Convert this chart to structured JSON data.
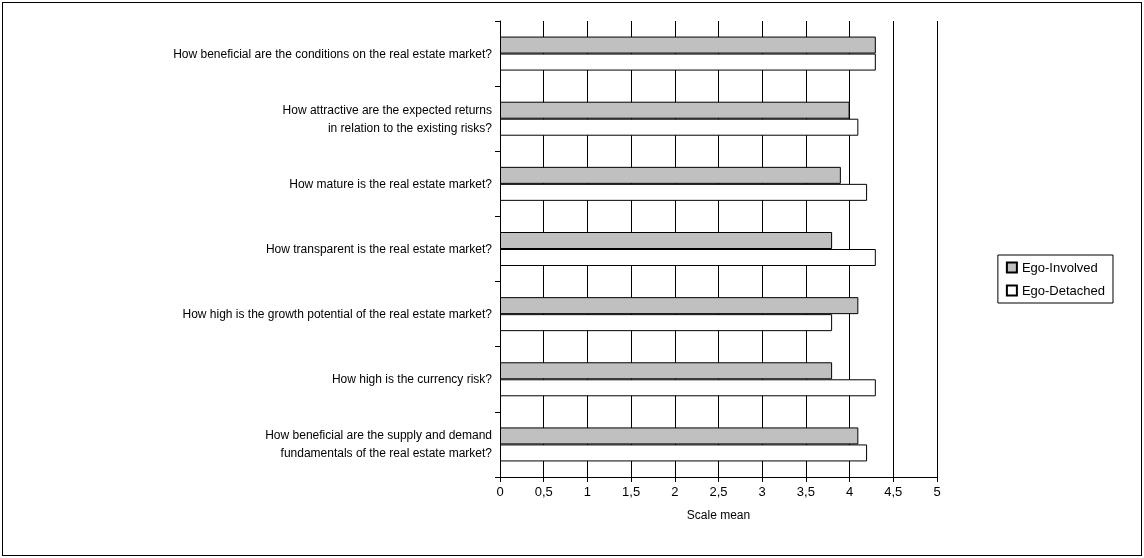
{
  "chart_data": {
    "type": "bar",
    "orientation": "horizontal",
    "xlabel": "Scale mean",
    "categories": [
      "How beneficial are the conditions on the real estate market?",
      "How attractive are the expected returns\nin relation to the existing risks?",
      "How mature is the real estate market?",
      "How transparent is the real estate market?",
      "How high is the growth potential of the real estate market?",
      "How high is the currency risk?",
      "How beneficial are the supply and demand\nfundamentals of the real estate market?"
    ],
    "series": [
      {
        "name": "Ego-Involved",
        "color": "#c0c0c0",
        "values": [
          4.3,
          4.0,
          3.9,
          3.8,
          4.1,
          3.8,
          4.1
        ]
      },
      {
        "name": "Ego-Detached",
        "color": "#ffffff",
        "values": [
          4.3,
          4.1,
          4.2,
          4.3,
          3.8,
          4.3,
          4.2
        ]
      }
    ],
    "xlim": [
      0,
      5
    ],
    "xticks": [
      0,
      {
        "value": 0.5,
        "label": "0,5"
      },
      1,
      {
        "value": 1.5,
        "label": "1,5"
      },
      2,
      {
        "value": 2.5,
        "label": "2,5"
      },
      3,
      {
        "value": 3.5,
        "label": "3,5"
      },
      4,
      {
        "value": 4.5,
        "label": "4,5"
      },
      5
    ],
    "grid": "x",
    "legend": "right"
  }
}
